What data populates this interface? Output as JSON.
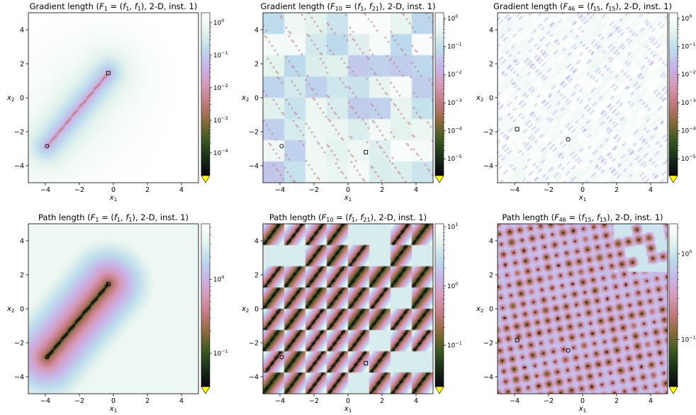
{
  "chart_data": [
    {
      "type": "heatmap",
      "metric": "gradient",
      "title": "Gradient length (F1 = (f1, f1), 2-D, inst. 1)",
      "title_parts": {
        "pre": "Gradient length (",
        "F": "F",
        "Fsub": "1",
        "f1": "f",
        "f1sub": "1",
        "f2": "f",
        "f2sub": "1",
        "post": "), 2-D, inst. 1)"
      },
      "xlabel": "x1",
      "xlabel_main": "x",
      "xlabel_sub": "1",
      "ylabel": "x2",
      "ylabel_main": "x",
      "ylabel_sub": "2",
      "xlim": [
        -5,
        5
      ],
      "ylim": [
        -5,
        5
      ],
      "xticks": [
        -4,
        -2,
        0,
        2,
        4
      ],
      "yticks": [
        -4,
        -2,
        0,
        2,
        4
      ],
      "optimum_square": [
        -0.3,
        1.45
      ],
      "optimum_circle": [
        -3.9,
        -2.85
      ],
      "colorbar": {
        "scale": "log",
        "ticks": [
          {
            "base": "10",
            "exp": "0"
          },
          {
            "base": "10",
            "exp": "−1"
          },
          {
            "base": "10",
            "exp": "−2"
          },
          {
            "base": "10",
            "exp": "−3"
          },
          {
            "base": "10",
            "exp": "−4"
          }
        ],
        "range_exp": [
          -4.7,
          0.3
        ]
      }
    },
    {
      "type": "heatmap",
      "metric": "gradient",
      "title": "Gradient length (F10 = (f1, f21), 2-D, inst. 1)",
      "title_parts": {
        "pre": "Gradient length (",
        "F": "F",
        "Fsub": "10",
        "f1": "f",
        "f1sub": "1",
        "f2": "f",
        "f2sub": "21",
        "post": "), 2-D, inst. 1)"
      },
      "xlabel": "x1",
      "xlabel_main": "x",
      "xlabel_sub": "1",
      "ylabel": "x2",
      "ylabel_main": "x",
      "ylabel_sub": "2",
      "xlim": [
        -5,
        5
      ],
      "ylim": [
        -5,
        5
      ],
      "xticks": [
        -4,
        -2,
        0,
        2,
        4
      ],
      "yticks": [
        -4,
        -2,
        0,
        2,
        4
      ],
      "optimum_square": [
        1.05,
        -3.2
      ],
      "optimum_circle": [
        -3.9,
        -2.85
      ],
      "colorbar": {
        "scale": "log",
        "ticks": [
          {
            "base": "10",
            "exp": "0"
          },
          {
            "base": "10",
            "exp": "−1"
          },
          {
            "base": "10",
            "exp": "−2"
          },
          {
            "base": "10",
            "exp": "−3"
          },
          {
            "base": "10",
            "exp": "−4"
          },
          {
            "base": "10",
            "exp": "−5"
          }
        ],
        "range_exp": [
          -5.6,
          0.2
        ]
      }
    },
    {
      "type": "heatmap",
      "metric": "gradient",
      "title": "Gradient length (F46 = (f15, f15), 2-D, inst. 1)",
      "title_parts": {
        "pre": "Gradient length (",
        "F": "F",
        "Fsub": "46",
        "f1": "f",
        "f1sub": "15",
        "f2": "f",
        "f2sub": "15",
        "post": "), 2-D, inst. 1)"
      },
      "xlabel": "x1",
      "xlabel_main": "x",
      "xlabel_sub": "1",
      "ylabel": "x2",
      "ylabel_main": "x",
      "ylabel_sub": "2",
      "xlim": [
        -5,
        5
      ],
      "ylim": [
        -5,
        5
      ],
      "xticks": [
        -4,
        -2,
        0,
        2,
        4
      ],
      "yticks": [
        -4,
        -2,
        0,
        2,
        4
      ],
      "optimum_square": [
        -3.85,
        -1.85
      ],
      "optimum_circle": [
        -0.85,
        -2.45
      ],
      "colorbar": {
        "scale": "log",
        "ticks": [
          {
            "base": "10",
            "exp": "0"
          },
          {
            "base": "10",
            "exp": "−1"
          },
          {
            "base": "10",
            "exp": "−2"
          },
          {
            "base": "10",
            "exp": "−3"
          },
          {
            "base": "10",
            "exp": "−4"
          },
          {
            "base": "10",
            "exp": "−5"
          }
        ],
        "range_exp": [
          -5.6,
          0.2
        ]
      }
    },
    {
      "type": "heatmap",
      "metric": "path",
      "title": "Path length (F1 = (f1, f1), 2-D, inst. 1)",
      "title_parts": {
        "pre": "Path length (",
        "F": "F",
        "Fsub": "1",
        "f1": "f",
        "f1sub": "1",
        "f2": "f",
        "f2sub": "1",
        "post": "), 2-D, inst. 1)"
      },
      "xlabel": "x1",
      "xlabel_main": "x",
      "xlabel_sub": "1",
      "ylabel": "x2",
      "ylabel_main": "x",
      "ylabel_sub": "2",
      "xlim": [
        -5,
        5
      ],
      "ylim": [
        -5,
        5
      ],
      "xticks": [
        -4,
        -2,
        0,
        2,
        4
      ],
      "yticks": [
        -4,
        -2,
        0,
        2,
        4
      ],
      "optimum_square": [
        -0.3,
        1.45
      ],
      "optimum_circle": [
        -3.9,
        -2.85
      ],
      "colorbar": {
        "scale": "log",
        "ticks": [
          {
            "base": "10",
            "exp": "0"
          },
          {
            "base": "10",
            "exp": "−1"
          }
        ],
        "range_exp": [
          -1.45,
          0.75
        ]
      }
    },
    {
      "type": "heatmap",
      "metric": "path",
      "title": "Path length (F10 = (f1, f21), 2-D, inst. 1)",
      "title_parts": {
        "pre": "Path length (",
        "F": "F",
        "Fsub": "10",
        "f1": "f",
        "f1sub": "1",
        "f2": "f",
        "f2sub": "21",
        "post": "), 2-D, inst. 1)"
      },
      "xlabel": "x1",
      "xlabel_main": "x",
      "xlabel_sub": "1",
      "ylabel": "x2",
      "ylabel_main": "x",
      "ylabel_sub": "2",
      "xlim": [
        -5,
        5
      ],
      "ylim": [
        -5,
        5
      ],
      "xticks": [
        -4,
        -2,
        0,
        2,
        4
      ],
      "yticks": [
        -4,
        -2,
        0,
        2,
        4
      ],
      "optimum_square": [
        1.05,
        -3.2
      ],
      "optimum_circle": [
        -3.9,
        -2.85
      ],
      "colorbar": {
        "scale": "log",
        "ticks": [
          {
            "base": "10",
            "exp": "1"
          },
          {
            "base": "10",
            "exp": "0"
          },
          {
            "base": "10",
            "exp": "−1"
          }
        ],
        "range_exp": [
          -1.7,
          1.05
        ]
      }
    },
    {
      "type": "heatmap",
      "metric": "path",
      "title": "Path length (F46 = (f15, f15), 2-D, inst. 1)",
      "title_parts": {
        "pre": "Path length (",
        "F": "F",
        "Fsub": "46",
        "f1": "f",
        "f1sub": "15",
        "f2": "f",
        "f2sub": "15",
        "post": "), 2-D, inst. 1)"
      },
      "xlabel": "x1",
      "xlabel_main": "x",
      "xlabel_sub": "1",
      "ylabel": "x2",
      "ylabel_main": "x",
      "ylabel_sub": "2",
      "xlim": [
        -5,
        5
      ],
      "ylim": [
        -5,
        5
      ],
      "xticks": [
        -4,
        -2,
        0,
        2,
        4
      ],
      "yticks": [
        -4,
        -2,
        0,
        2,
        4
      ],
      "optimum_square": [
        -3.85,
        -1.85
      ],
      "optimum_circle": [
        -0.85,
        -2.45
      ],
      "colorbar": {
        "scale": "log",
        "ticks": [
          {
            "base": "10",
            "exp": "0"
          },
          {
            "base": "10",
            "exp": "−1"
          }
        ],
        "range_exp": [
          -1.55,
          0.35
        ]
      }
    }
  ],
  "colormap": {
    "name": "cubehelix-like",
    "stops": [
      "#0a0410",
      "#183018",
      "#3a5a20",
      "#8a6a3a",
      "#c27a7e",
      "#d69ab8",
      "#c8b4e8",
      "#bcdcec",
      "#e6f4ee",
      "#ffffff"
    ],
    "under_color": "#ffff00"
  }
}
